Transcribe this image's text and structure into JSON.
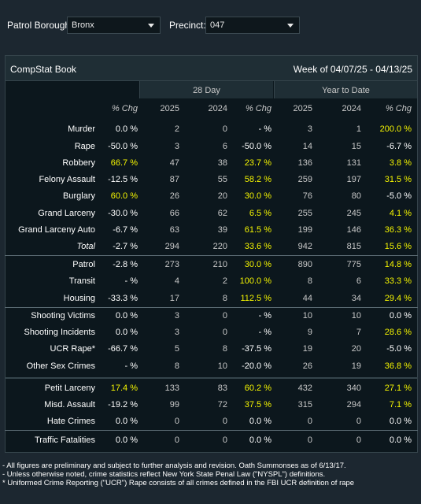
{
  "filters": {
    "borough_label": "Patrol Borough:",
    "borough_value": "Bronx",
    "precinct_label": "Precinct:",
    "precinct_value": "047"
  },
  "book": {
    "title": "CompStat Book",
    "week": "Week of 04/07/25 - 04/13/25",
    "group_28day": "28 Day",
    "group_ytd": "Year to Date"
  },
  "columns": [
    "% Chg",
    "2025",
    "2024",
    "% Chg",
    "2025",
    "2024",
    "% Chg"
  ],
  "highlight_color": "#f5f500",
  "rows": [
    {
      "label": "Murder",
      "v": [
        "0.0 %",
        "2",
        "0",
        "- %",
        "3",
        "1",
        "200.0 %"
      ],
      "hi": [
        false,
        false,
        false,
        false,
        false,
        false,
        true
      ]
    },
    {
      "label": "Rape",
      "v": [
        "-50.0 %",
        "3",
        "6",
        "-50.0 %",
        "14",
        "15",
        "-6.7 %"
      ],
      "hi": [
        false,
        false,
        false,
        false,
        false,
        false,
        false
      ]
    },
    {
      "label": "Robbery",
      "v": [
        "66.7 %",
        "47",
        "38",
        "23.7 %",
        "136",
        "131",
        "3.8 %"
      ],
      "hi": [
        true,
        false,
        false,
        true,
        false,
        false,
        true
      ]
    },
    {
      "label": "Felony Assault",
      "v": [
        "-12.5 %",
        "87",
        "55",
        "58.2 %",
        "259",
        "197",
        "31.5 %"
      ],
      "hi": [
        false,
        false,
        false,
        true,
        false,
        false,
        true
      ]
    },
    {
      "label": "Burglary",
      "v": [
        "60.0 %",
        "26",
        "20",
        "30.0 %",
        "76",
        "80",
        "-5.0 %"
      ],
      "hi": [
        true,
        false,
        false,
        true,
        false,
        false,
        false
      ]
    },
    {
      "label": "Grand Larceny",
      "v": [
        "-30.0 %",
        "66",
        "62",
        "6.5 %",
        "255",
        "245",
        "4.1 %"
      ],
      "hi": [
        false,
        false,
        false,
        true,
        false,
        false,
        true
      ]
    },
    {
      "label": "Grand Larceny Auto",
      "v": [
        "-6.7 %",
        "63",
        "39",
        "61.5 %",
        "199",
        "146",
        "36.3 %"
      ],
      "hi": [
        false,
        false,
        false,
        true,
        false,
        false,
        true
      ]
    },
    {
      "label": "Total",
      "v": [
        "-2.7 %",
        "294",
        "220",
        "33.6 %",
        "942",
        "815",
        "15.6 %"
      ],
      "hi": [
        false,
        false,
        false,
        true,
        false,
        false,
        true
      ]
    },
    {
      "label": "Patrol",
      "v": [
        "-2.8 %",
        "273",
        "210",
        "30.0 %",
        "890",
        "775",
        "14.8 %"
      ],
      "hi": [
        false,
        false,
        false,
        true,
        false,
        false,
        true
      ]
    },
    {
      "label": "Transit",
      "v": [
        "- %",
        "4",
        "2",
        "100.0 %",
        "8",
        "6",
        "33.3 %"
      ],
      "hi": [
        false,
        false,
        false,
        true,
        false,
        false,
        true
      ]
    },
    {
      "label": "Housing",
      "v": [
        "-33.3 %",
        "17",
        "8",
        "112.5 %",
        "44",
        "34",
        "29.4 %"
      ],
      "hi": [
        false,
        false,
        false,
        true,
        false,
        false,
        true
      ]
    },
    {
      "label": "Shooting Victims",
      "v": [
        "0.0 %",
        "3",
        "0",
        "- %",
        "10",
        "10",
        "0.0 %"
      ],
      "hi": [
        false,
        false,
        false,
        false,
        false,
        false,
        false
      ]
    },
    {
      "label": "Shooting Incidents",
      "v": [
        "0.0 %",
        "3",
        "0",
        "- %",
        "9",
        "7",
        "28.6 %"
      ],
      "hi": [
        false,
        false,
        false,
        false,
        false,
        false,
        true
      ]
    },
    {
      "label": "UCR Rape*",
      "v": [
        "-66.7 %",
        "5",
        "8",
        "-37.5 %",
        "19",
        "20",
        "-5.0 %"
      ],
      "hi": [
        false,
        false,
        false,
        false,
        false,
        false,
        false
      ]
    },
    {
      "label": "Other Sex Crimes",
      "v": [
        "- %",
        "8",
        "10",
        "-20.0 %",
        "26",
        "19",
        "36.8 %"
      ],
      "hi": [
        false,
        false,
        false,
        false,
        false,
        false,
        true
      ]
    }
  ],
  "rows2": [
    {
      "label": "Petit Larceny",
      "v": [
        "17.4 %",
        "133",
        "83",
        "60.2 %",
        "432",
        "340",
        "27.1 %"
      ],
      "hi": [
        true,
        false,
        false,
        true,
        false,
        false,
        true
      ]
    },
    {
      "label": "Misd. Assault",
      "v": [
        "-19.2 %",
        "99",
        "72",
        "37.5 %",
        "315",
        "294",
        "7.1 %"
      ],
      "hi": [
        false,
        false,
        false,
        true,
        false,
        false,
        true
      ]
    },
    {
      "label": "Hate Crimes",
      "v": [
        "0.0 %",
        "0",
        "0",
        "0.0 %",
        "0",
        "0",
        "0.0 %"
      ],
      "hi": [
        false,
        false,
        false,
        false,
        false,
        false,
        false
      ]
    },
    {
      "label": "Traffic Fatalities",
      "v": [
        "0.0 %",
        "0",
        "0",
        "0.0 %",
        "0",
        "0",
        "0.0 %"
      ],
      "hi": [
        false,
        false,
        false,
        false,
        false,
        false,
        false
      ]
    }
  ],
  "footnotes": [
    "- All figures are preliminary and subject to further analysis and revision. Oath Summonses as of 6/13/17.",
    "- Unless otherwise noted, crime statistics reflect New York State Penal Law (\"NYSPL\") definitions.",
    "* Uniformed Crime Reporting (\"UCR\") Rape consists of all crimes defined in the FBI UCR definition of rape"
  ]
}
